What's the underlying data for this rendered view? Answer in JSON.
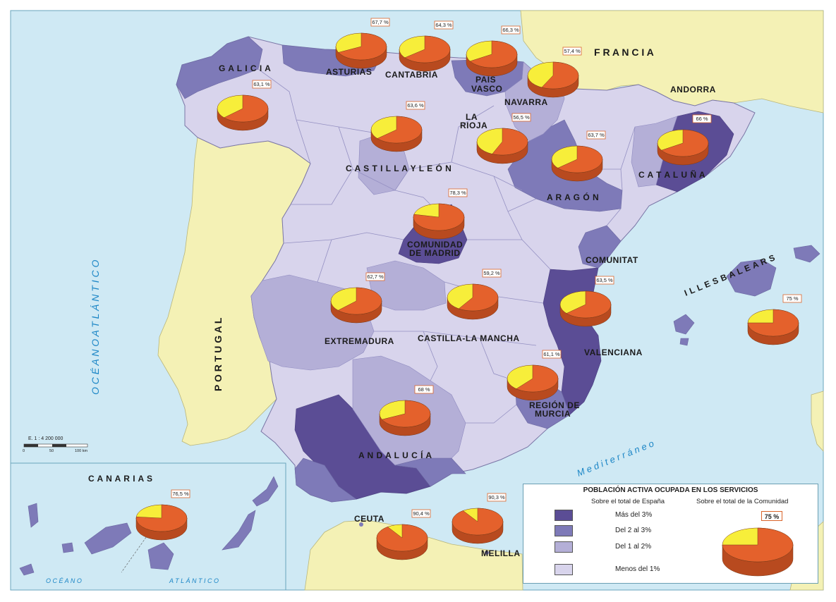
{
  "map_title": "POBLACIÓN ACTIVA OCUPADA EN LOS SERVICIOS",
  "countries": {
    "france": "F R A N C I A",
    "portugal": "P O R T U G A L",
    "andorra": "ANDORRA"
  },
  "seas": {
    "atlantic": "O C É A N O   A T L Á N T I C O",
    "mediterranean": "M e d i t e r r á n e o",
    "canarias_ocean": "O C É A N O",
    "canarias_atlantic": "A T L Á N T I C O"
  },
  "regions": {
    "galicia": "G A L I C I A",
    "asturias": "ASTURIAS",
    "cantabria": "CANTABRIA",
    "pais_vasco_1": "PAÍS",
    "pais_vasco_2": "VASCO",
    "navarra": "NAVARRA",
    "la_rioja_1": "LA",
    "la_rioja_2": "RIOJA",
    "castilla_leon": "C A S T I L L A   Y   L E Ó N",
    "aragon": "A R A G Ó N",
    "cataluna": "C A T A L U Ñ A",
    "madrid_1": "COMUNIDAD",
    "madrid_2": "DE MADRID",
    "comunitat": "COMUNITAT",
    "valenciana": "VALENCIANA",
    "extremadura": "EXTREMADURA",
    "castilla_mancha": "CASTILLA-LA MANCHA",
    "murcia_1": "REGIÓN DE",
    "murcia_2": "MURCIA",
    "andalucia": "A N D A L U C Í A",
    "baleares": "I L L E S   B A L E A R S",
    "canarias": "C A N A R I A S",
    "ceuta": "CEUTA",
    "melilla": "MELILLA"
  },
  "scale": {
    "label": "E. 1 : 4 200 000",
    "t0": "0",
    "t1": "50",
    "t2": "100 km"
  },
  "pies": [
    {
      "id": "galicia",
      "value": "63,1 %",
      "fraction": 0.631
    },
    {
      "id": "asturias",
      "value": "67,7 %",
      "fraction": 0.677
    },
    {
      "id": "cantabria",
      "value": "64,3 %",
      "fraction": 0.643
    },
    {
      "id": "pais-vasco",
      "value": "66,3 %",
      "fraction": 0.663
    },
    {
      "id": "navarra",
      "value": "57,4 %",
      "fraction": 0.574
    },
    {
      "id": "castilla-leon",
      "value": "63,6 %",
      "fraction": 0.636
    },
    {
      "id": "la-rioja",
      "value": "56,5 %",
      "fraction": 0.565
    },
    {
      "id": "aragon",
      "value": "63,7 %",
      "fraction": 0.637
    },
    {
      "id": "cataluna",
      "value": "66 %",
      "fraction": 0.66
    },
    {
      "id": "madrid",
      "value": "78,3 %",
      "fraction": 0.783
    },
    {
      "id": "extremadura",
      "value": "62,7 %",
      "fraction": 0.627
    },
    {
      "id": "castilla-mancha",
      "value": "59,2 %",
      "fraction": 0.592
    },
    {
      "id": "valenciana",
      "value": "63,5 %",
      "fraction": 0.635
    },
    {
      "id": "baleares",
      "value": "75 %",
      "fraction": 0.75
    },
    {
      "id": "murcia",
      "value": "61,1 %",
      "fraction": 0.611
    },
    {
      "id": "andalucia",
      "value": "68 %",
      "fraction": 0.68
    },
    {
      "id": "canarias",
      "value": "76,5 %",
      "fraction": 0.765
    },
    {
      "id": "ceuta",
      "value": "90,4 %",
      "fraction": 0.904
    },
    {
      "id": "melilla",
      "value": "90,3 %",
      "fraction": 0.903
    }
  ],
  "legend": {
    "title": "POBLACIÓN ACTIVA OCUPADA EN LOS SERVICIOS",
    "col1": "Sobre el total de España",
    "col2": "Sobre el total de la Comunidad",
    "classes": [
      {
        "label": "Más del 3%",
        "color": "#5b4d95"
      },
      {
        "label": "Del 2 al 3%",
        "color": "#7e7ab8"
      },
      {
        "label": "Del 1 al 2%",
        "color": "#b4afd7"
      },
      {
        "label": "Menos del 1%",
        "color": "#d8d4ec"
      }
    ],
    "example_value": "75 %",
    "example_fraction": 0.75
  },
  "colors": {
    "sea": "#cfe9f4",
    "foreign_land": "#f4f1b5",
    "pie_main": "#e4612c",
    "pie_rest": "#f7ee3a",
    "pie_side": "#b84a1f"
  }
}
